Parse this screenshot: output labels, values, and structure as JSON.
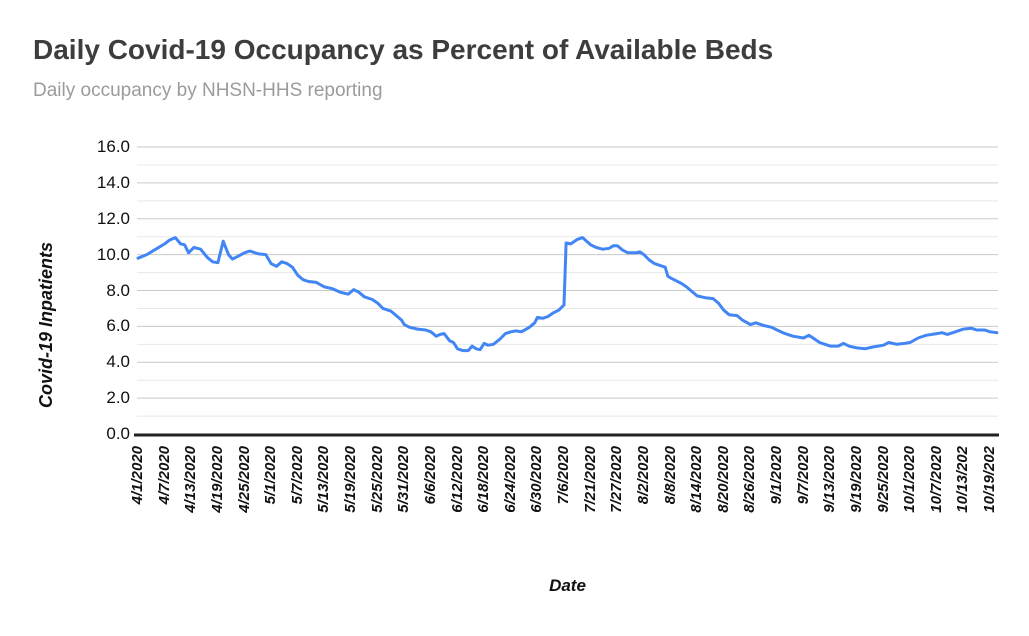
{
  "chart_data": {
    "type": "line",
    "title": "Daily Covid-19 Occupancy as Percent of Available Beds",
    "subtitle": "Daily occupancy by NHSN-HHS reporting",
    "xlabel": "Date",
    "ylabel": "Covid-19 Inpatients",
    "ylim": [
      0,
      16
    ],
    "y_major_step": 2,
    "y_minor_step": 1,
    "grid": true,
    "legend_position": "none",
    "x_tick_rotation": -90,
    "line_color": "#4285f4",
    "axis_line_color": "#212121",
    "major_grid_color": "#c9c9c9",
    "minor_grid_color": "#e8e8e8",
    "y_tick_labels": [
      "0.0",
      "2.0",
      "4.0",
      "6.0",
      "8.0",
      "10.0",
      "12.0",
      "14.0",
      "16.0"
    ],
    "x_tick_labels": [
      "4/1/2020",
      "4/7/2020",
      "4/13/2020",
      "4/19/2020",
      "4/25/2020",
      "5/1/2020",
      "5/7/2020",
      "5/13/2020",
      "5/19/2020",
      "5/25/2020",
      "5/31/2020",
      "6/6/2020",
      "6/12/2020",
      "6/18/2020",
      "6/24/2020",
      "6/30/2020",
      "7/6/2020",
      "7/21/2020",
      "7/27/2020",
      "8/2/2020",
      "8/8/2020",
      "8/14/2020",
      "8/20/2020",
      "8/26/2020",
      "9/1/2020",
      "9/7/2020",
      "9/13/2020",
      "9/19/2020",
      "9/25/2020",
      "10/1/2020",
      "10/7/2020",
      "10/13/202",
      "10/19/202"
    ],
    "series": [
      {
        "name": "Covid-19 Inpatients",
        "note": "x is in x-tick label units (0 = 4/1/2020 tick, 1 tick = 6 days); y is percent of available beds",
        "points": [
          [
            0,
            9.8
          ],
          [
            0.33,
            10.0
          ],
          [
            0.67,
            10.3
          ],
          [
            1,
            10.6
          ],
          [
            1.17,
            10.8
          ],
          [
            1.4,
            10.95
          ],
          [
            1.6,
            10.6
          ],
          [
            1.75,
            10.55
          ],
          [
            1.9,
            10.1
          ],
          [
            2.1,
            10.4
          ],
          [
            2.35,
            10.3
          ],
          [
            2.6,
            9.85
          ],
          [
            2.8,
            9.6
          ],
          [
            3,
            9.55
          ],
          [
            3.2,
            10.75
          ],
          [
            3.4,
            10.0
          ],
          [
            3.55,
            9.75
          ],
          [
            3.75,
            9.9
          ],
          [
            4,
            10.1
          ],
          [
            4.2,
            10.2
          ],
          [
            4.5,
            10.05
          ],
          [
            4.8,
            10.0
          ],
          [
            5,
            9.5
          ],
          [
            5.2,
            9.35
          ],
          [
            5.4,
            9.6
          ],
          [
            5.6,
            9.5
          ],
          [
            5.8,
            9.3
          ],
          [
            6,
            8.85
          ],
          [
            6.2,
            8.6
          ],
          [
            6.4,
            8.5
          ],
          [
            6.7,
            8.45
          ],
          [
            7,
            8.2
          ],
          [
            7.3,
            8.1
          ],
          [
            7.6,
            7.9
          ],
          [
            7.9,
            7.8
          ],
          [
            8.1,
            8.05
          ],
          [
            8.3,
            7.9
          ],
          [
            8.5,
            7.65
          ],
          [
            8.8,
            7.5
          ],
          [
            9,
            7.3
          ],
          [
            9.2,
            7.0
          ],
          [
            9.5,
            6.85
          ],
          [
            9.7,
            6.6
          ],
          [
            9.9,
            6.35
          ],
          [
            10,
            6.1
          ],
          [
            10.2,
            5.95
          ],
          [
            10.5,
            5.85
          ],
          [
            10.8,
            5.8
          ],
          [
            11,
            5.7
          ],
          [
            11.2,
            5.45
          ],
          [
            11.35,
            5.55
          ],
          [
            11.5,
            5.6
          ],
          [
            11.7,
            5.2
          ],
          [
            11.85,
            5.1
          ],
          [
            12,
            4.75
          ],
          [
            12.2,
            4.65
          ],
          [
            12.4,
            4.65
          ],
          [
            12.55,
            4.9
          ],
          [
            12.7,
            4.75
          ],
          [
            12.85,
            4.7
          ],
          [
            13,
            5.05
          ],
          [
            13.15,
            4.95
          ],
          [
            13.35,
            5.0
          ],
          [
            13.6,
            5.3
          ],
          [
            13.8,
            5.6
          ],
          [
            14,
            5.7
          ],
          [
            14.2,
            5.75
          ],
          [
            14.4,
            5.7
          ],
          [
            14.7,
            5.95
          ],
          [
            14.9,
            6.2
          ],
          [
            15,
            6.5
          ],
          [
            15.2,
            6.45
          ],
          [
            15.4,
            6.55
          ],
          [
            15.6,
            6.75
          ],
          [
            15.8,
            6.9
          ],
          [
            16,
            7.2
          ],
          [
            16.08,
            10.65
          ],
          [
            16.25,
            10.6
          ],
          [
            16.5,
            10.85
          ],
          [
            16.7,
            10.95
          ],
          [
            16.85,
            10.75
          ],
          [
            17,
            10.55
          ],
          [
            17.2,
            10.4
          ],
          [
            17.45,
            10.3
          ],
          [
            17.7,
            10.35
          ],
          [
            17.85,
            10.5
          ],
          [
            18,
            10.5
          ],
          [
            18.2,
            10.25
          ],
          [
            18.4,
            10.1
          ],
          [
            18.7,
            10.1
          ],
          [
            18.85,
            10.15
          ],
          [
            19,
            10.0
          ],
          [
            19.2,
            9.7
          ],
          [
            19.4,
            9.5
          ],
          [
            19.6,
            9.4
          ],
          [
            19.8,
            9.3
          ],
          [
            19.9,
            8.8
          ],
          [
            20,
            8.7
          ],
          [
            20.2,
            8.55
          ],
          [
            20.4,
            8.4
          ],
          [
            20.6,
            8.2
          ],
          [
            20.8,
            7.95
          ],
          [
            21,
            7.7
          ],
          [
            21.3,
            7.6
          ],
          [
            21.6,
            7.55
          ],
          [
            21.8,
            7.3
          ],
          [
            22,
            6.9
          ],
          [
            22.2,
            6.65
          ],
          [
            22.5,
            6.6
          ],
          [
            22.7,
            6.35
          ],
          [
            23,
            6.1
          ],
          [
            23.2,
            6.2
          ],
          [
            23.5,
            6.05
          ],
          [
            23.8,
            5.95
          ],
          [
            24,
            5.8
          ],
          [
            24.3,
            5.6
          ],
          [
            24.6,
            5.45
          ],
          [
            25,
            5.35
          ],
          [
            25.2,
            5.5
          ],
          [
            25.4,
            5.3
          ],
          [
            25.6,
            5.1
          ],
          [
            25.8,
            5.0
          ],
          [
            26,
            4.9
          ],
          [
            26.3,
            4.9
          ],
          [
            26.5,
            5.05
          ],
          [
            26.7,
            4.9
          ],
          [
            27,
            4.8
          ],
          [
            27.3,
            4.75
          ],
          [
            27.6,
            4.85
          ],
          [
            28,
            4.95
          ],
          [
            28.2,
            5.1
          ],
          [
            28.5,
            5.0
          ],
          [
            28.8,
            5.05
          ],
          [
            29,
            5.1
          ],
          [
            29.3,
            5.35
          ],
          [
            29.6,
            5.5
          ],
          [
            30,
            5.6
          ],
          [
            30.2,
            5.65
          ],
          [
            30.4,
            5.55
          ],
          [
            30.7,
            5.7
          ],
          [
            31,
            5.85
          ],
          [
            31.3,
            5.9
          ],
          [
            31.5,
            5.8
          ],
          [
            31.8,
            5.8
          ],
          [
            32,
            5.7
          ],
          [
            32.26,
            5.65
          ]
        ]
      }
    ]
  }
}
